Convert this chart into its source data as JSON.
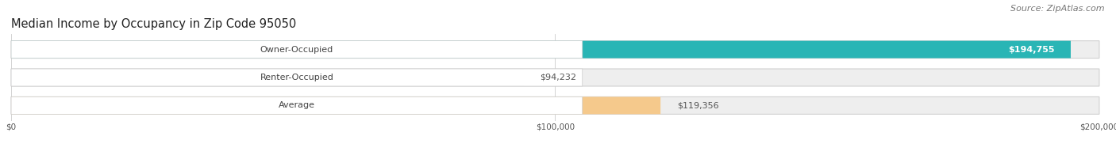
{
  "title": "Median Income by Occupancy in Zip Code 95050",
  "source": "Source: ZipAtlas.com",
  "categories": [
    "Owner-Occupied",
    "Renter-Occupied",
    "Average"
  ],
  "values": [
    194755,
    94232,
    119356
  ],
  "bar_colors": [
    "#29b5b5",
    "#c9aad4",
    "#f5c98c"
  ],
  "bar_bg_color": "#eeeeee",
  "label_inside_bar": [
    true,
    false,
    false
  ],
  "value_labels": [
    "$194,755",
    "$94,232",
    "$119,356"
  ],
  "xlim": [
    0,
    200000
  ],
  "xtick_vals": [
    0,
    100000,
    200000
  ],
  "xtick_labels": [
    "$0",
    "$100,000",
    "$200,000"
  ],
  "title_fontsize": 10.5,
  "source_fontsize": 8,
  "cat_label_fontsize": 8,
  "value_label_fontsize": 8,
  "background_color": "#ffffff",
  "figsize": [
    14.06,
    1.96
  ],
  "dpi": 100
}
